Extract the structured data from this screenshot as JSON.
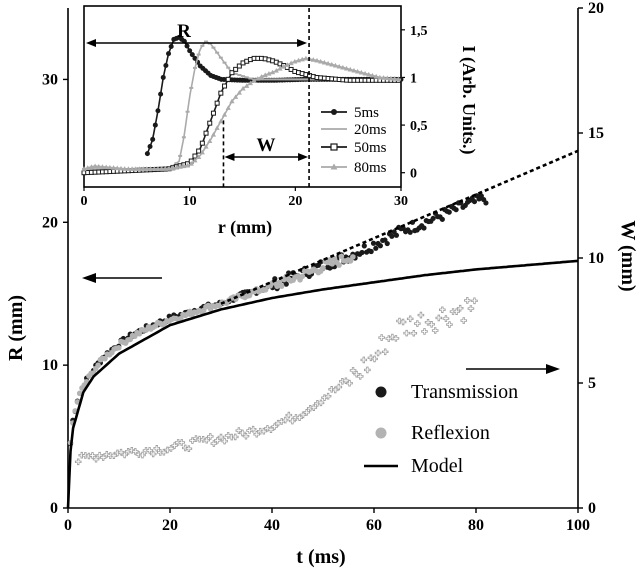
{
  "chart_data": [
    {
      "type": "scatter",
      "name": "main",
      "xlabel": "t (ms)",
      "ylabel": "R (mm)",
      "y2label": "W (mm)",
      "xlim": [
        0,
        100
      ],
      "ylim": [
        0,
        35
      ],
      "y2lim": [
        0,
        20
      ],
      "xticks": [
        "0",
        "20",
        "40",
        "60",
        "80",
        "100"
      ],
      "yticks": [
        "0",
        "10",
        "20",
        "30"
      ],
      "y2ticks": [
        "0",
        "5",
        "10",
        "15",
        "20"
      ],
      "legend": {
        "position": "bottom-right",
        "entries": [
          {
            "label": "Transmission",
            "marker": "dot",
            "color": "#1a1a1a"
          },
          {
            "label": "Reflexion",
            "marker": "dot",
            "color": "#b3b3b3"
          },
          {
            "label": "Model",
            "marker": "line",
            "color": "#000000"
          }
        ]
      },
      "series": [
        {
          "name": "Transmission",
          "kind": "points",
          "color": "#1a1a1a",
          "x": [
            0.5,
            1,
            2,
            3,
            5,
            7,
            10,
            13,
            16,
            20,
            23,
            26,
            30,
            34,
            38,
            42,
            46,
            50,
            54,
            58,
            62,
            66,
            70,
            74,
            78,
            82
          ],
          "y": [
            4.5,
            6.3,
            7.8,
            8.6,
            9.7,
            10.6,
            11.5,
            12.2,
            12.7,
            13.3,
            13.6,
            14.0,
            14.3,
            14.9,
            15.3,
            15.9,
            16.4,
            17.0,
            17.5,
            18.1,
            18.8,
            19.5,
            20.0,
            20.6,
            21.2,
            21.7
          ]
        },
        {
          "name": "Reflexion",
          "kind": "points",
          "color": "#b3b3b3",
          "x": [
            0.5,
            1,
            2,
            3,
            5,
            7,
            10,
            13,
            16,
            20,
            23,
            26,
            30,
            34,
            38,
            42,
            46,
            50,
            54,
            56
          ],
          "y": [
            4.4,
            6.1,
            7.7,
            8.5,
            9.6,
            10.5,
            11.4,
            12.1,
            12.6,
            13.2,
            13.5,
            13.9,
            14.3,
            14.8,
            15.3,
            15.8,
            16.3,
            16.9,
            17.4,
            17.7
          ]
        },
        {
          "name": "Model",
          "kind": "line",
          "color": "#000000",
          "x": [
            0,
            1,
            3,
            5,
            10,
            20,
            30,
            40,
            50,
            60,
            70,
            80,
            90,
            100
          ],
          "y": [
            0,
            5.6,
            8.1,
            9.2,
            10.8,
            12.8,
            13.9,
            14.7,
            15.3,
            15.8,
            16.3,
            16.7,
            17.0,
            17.3
          ]
        },
        {
          "name": "Extrapolation",
          "kind": "dashed",
          "color": "#000000",
          "x": [
            30,
            100
          ],
          "y": [
            14.3,
            25.0
          ]
        },
        {
          "name": "W",
          "kind": "cross",
          "axis": "right",
          "color": "#999999",
          "x": [
            2,
            5,
            10,
            15,
            20,
            25,
            30,
            35,
            40,
            45,
            50,
            55,
            60,
            62,
            65,
            68,
            72,
            76,
            80
          ],
          "y": [
            1.9,
            2.1,
            2.2,
            2.3,
            2.4,
            2.6,
            2.8,
            3.0,
            3.3,
            3.7,
            4.4,
            5.1,
            6.0,
            6.6,
            7.2,
            7.4,
            7.6,
            7.9,
            8.1
          ]
        }
      ],
      "annotations": {
        "left_arrow": {
          "direction": "left",
          "points_to": "R (mm)"
        },
        "right_arrow": {
          "direction": "right",
          "points_to": "W (mm)"
        }
      }
    },
    {
      "type": "line",
      "name": "inset",
      "xlabel": "r (mm)",
      "ylabel": "I (Arb. Units.)",
      "xlim": [
        0,
        30
      ],
      "ylim": [
        -0.15,
        1.75
      ],
      "xticks": [
        "0",
        "10",
        "20",
        "30"
      ],
      "yticks": [
        "0",
        "0,5",
        "1",
        "1,5"
      ],
      "legend": {
        "position": "right",
        "entries": [
          {
            "label": "5ms",
            "color": "#1a1a1a",
            "marker": "filled-circle"
          },
          {
            "label": "20ms",
            "color": "#aaaaaa",
            "marker": "dash"
          },
          {
            "label": "50ms",
            "color": "#1a1a1a",
            "marker": "open-square"
          },
          {
            "label": "80ms",
            "color": "#aaaaaa",
            "marker": "triangle"
          }
        ]
      },
      "annotations": {
        "R_label": "R",
        "W_label": "W",
        "dashed_lines_x": [
          13.2,
          21.3
        ],
        "R_arrow_x": [
          0,
          21.3
        ],
        "W_arrow_x": [
          13.2,
          21.3
        ]
      },
      "series": [
        {
          "name": "5ms",
          "color": "#1a1a1a",
          "x": [
            6,
            6.5,
            7,
            7.5,
            8,
            8.5,
            9,
            9.5,
            10,
            11,
            12,
            13,
            15,
            18,
            21,
            25,
            30
          ],
          "y": [
            0.2,
            0.35,
            0.65,
            1.0,
            1.25,
            1.4,
            1.42,
            1.38,
            1.28,
            1.12,
            1.02,
            0.98,
            0.97,
            0.97,
            0.98,
            0.98,
            0.98
          ]
        },
        {
          "name": "20ms",
          "color": "#aaaaaa",
          "x": [
            0,
            3,
            6,
            8,
            9,
            9.5,
            10,
            10.5,
            11,
            11.5,
            12,
            13,
            14,
            16,
            19,
            23,
            26,
            30
          ],
          "y": [
            0.04,
            0.03,
            0.03,
            0.04,
            0.12,
            0.4,
            0.8,
            1.1,
            1.3,
            1.38,
            1.35,
            1.2,
            1.05,
            0.98,
            0.98,
            0.98,
            0.98,
            0.98
          ]
        },
        {
          "name": "50ms",
          "color": "#1a1a1a",
          "x": [
            0,
            4,
            8,
            10,
            11,
            12,
            13,
            14,
            15,
            16,
            17,
            18,
            19,
            20,
            22,
            25,
            28,
            30
          ],
          "y": [
            0.0,
            0.02,
            0.04,
            0.1,
            0.25,
            0.55,
            0.85,
            1.05,
            1.15,
            1.2,
            1.2,
            1.17,
            1.12,
            1.06,
            1.0,
            0.97,
            0.97,
            0.97
          ]
        },
        {
          "name": "80ms",
          "color": "#aaaaaa",
          "x": [
            0,
            1,
            4,
            8,
            10,
            11,
            12,
            13,
            14,
            15,
            16,
            17,
            18,
            19,
            20,
            21,
            22,
            24,
            26,
            28,
            30
          ],
          "y": [
            0.04,
            0.07,
            0.04,
            0.04,
            0.08,
            0.18,
            0.35,
            0.55,
            0.75,
            0.88,
            0.96,
            1.02,
            1.06,
            1.12,
            1.17,
            1.2,
            1.18,
            1.12,
            1.06,
            1.0,
            0.98
          ]
        }
      ]
    }
  ]
}
